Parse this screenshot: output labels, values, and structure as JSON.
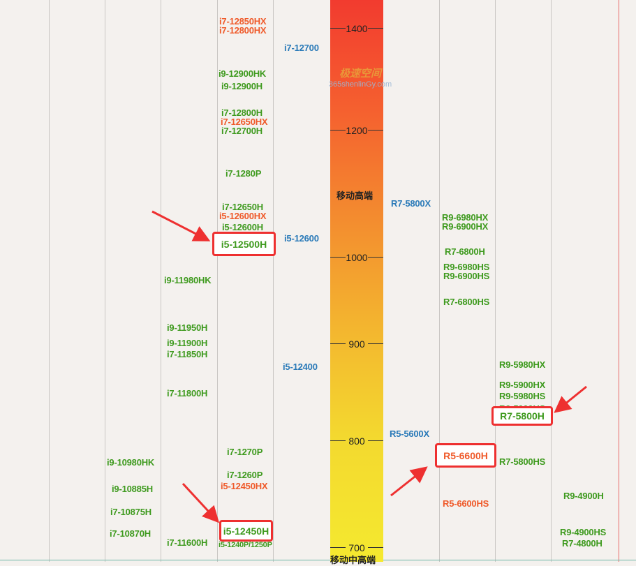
{
  "chart_data": {
    "type": "ladder",
    "scale_ticks": [
      "1400",
      "1200",
      "1000",
      "900",
      "800",
      "700"
    ],
    "tiers": [
      "移动高端",
      "移动中高端"
    ],
    "watermark": {
      "text": "极速空间",
      "sub": "365shenlinGy.com"
    },
    "columns": [
      {
        "name": "col-1",
        "items": [
          {
            "label": "i9-10980HK"
          },
          {
            "label": "i9-10885H"
          },
          {
            "label": "i7-10875H"
          },
          {
            "label": "i7-10870H"
          }
        ]
      },
      {
        "name": "col-2",
        "items": [
          {
            "label": "i9-11980HK"
          },
          {
            "label": "i9-11950H"
          },
          {
            "label": "i9-11900H"
          },
          {
            "label": "i7-11850H"
          },
          {
            "label": "i7-11800H"
          },
          {
            "label": "i7-11600H"
          }
        ]
      },
      {
        "name": "col-3",
        "items": [
          {
            "label": "i7-12850HX"
          },
          {
            "label": "i7-12800HX"
          },
          {
            "label": "i9-12900HK"
          },
          {
            "label": "i9-12900H"
          },
          {
            "label": "i7-12800H"
          },
          {
            "label": "i7-12650HX"
          },
          {
            "label": "i7-12700H"
          },
          {
            "label": "i7-1280P"
          },
          {
            "label": "i7-12650H"
          },
          {
            "label": "i5-12600HX"
          },
          {
            "label": "i5-12600H"
          },
          {
            "label": "i5-12500H"
          },
          {
            "label": "i7-1270P"
          },
          {
            "label": "i7-1260P"
          },
          {
            "label": "i5-12450HX"
          },
          {
            "label": "i5-12450H"
          },
          {
            "label": "i5-1240P/1250P"
          }
        ]
      },
      {
        "name": "col-4",
        "items": [
          {
            "label": "i7-12700"
          },
          {
            "label": "i5-12600"
          },
          {
            "label": "i5-12400"
          }
        ]
      },
      {
        "name": "col-5",
        "items": [
          {
            "label": "R7-5800X"
          },
          {
            "label": "R5-5600X"
          }
        ]
      },
      {
        "name": "col-6",
        "items": [
          {
            "label": "R9-6980HX"
          },
          {
            "label": "R9-6900HX"
          },
          {
            "label": "R7-6800H"
          },
          {
            "label": "R9-6980HS"
          },
          {
            "label": "R9-6900HS"
          },
          {
            "label": "R7-6800HS"
          },
          {
            "label": "R5-6600H"
          },
          {
            "label": "R5-6600HS"
          }
        ]
      },
      {
        "name": "col-7",
        "items": [
          {
            "label": "R9-5980HX"
          },
          {
            "label": "R9-5900HX"
          },
          {
            "label": "R9-5980HS"
          },
          {
            "label": "R9-5900HS"
          },
          {
            "label": "R7-5800H"
          },
          {
            "label": "R7-5800HS"
          }
        ]
      },
      {
        "name": "col-8",
        "items": [
          {
            "label": "R9-4900H"
          },
          {
            "label": "R9-4900HS"
          },
          {
            "label": "R7-4800H"
          }
        ]
      }
    ],
    "highlighted": [
      "i5-12500H",
      "i5-12450H",
      "R5-6600H",
      "R7-5800H"
    ],
    "colors": {
      "intel_mobile": "#3e9a1e",
      "hx_series": "#ef5a2a",
      "desktop": "#2a7ab8",
      "highlight_border": "#ee3030"
    }
  }
}
